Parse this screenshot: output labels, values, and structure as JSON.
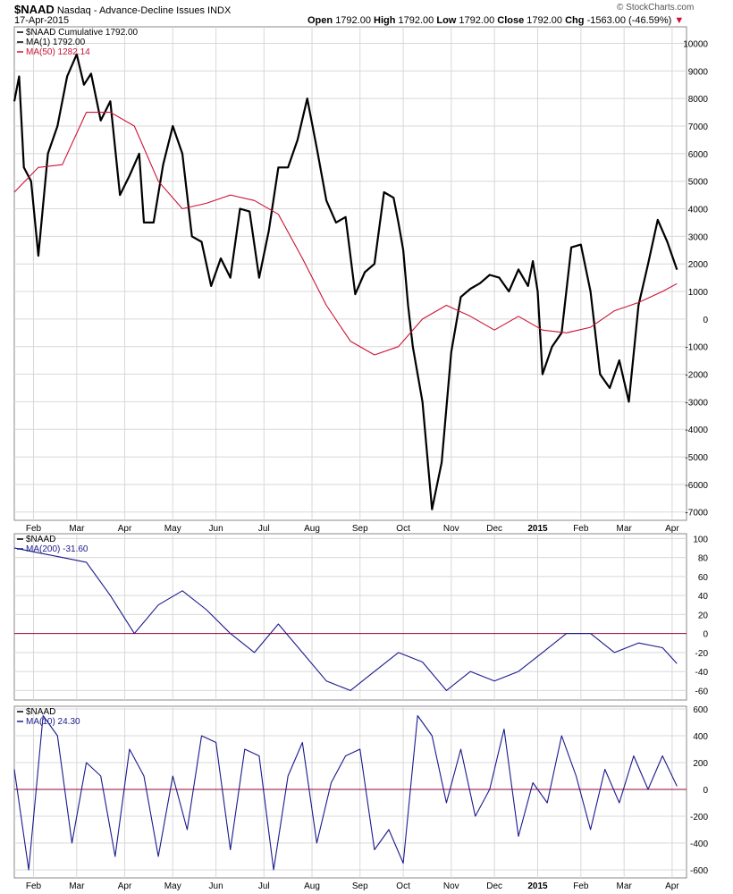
{
  "header": {
    "symbol": "$NAAD",
    "name": "Nasdaq - Advance-Decline Issues",
    "exchange": "INDX",
    "date": "17-Apr-2015",
    "open_label": "Open",
    "open": "1792.00",
    "high_label": "High",
    "high": "1792.00",
    "low_label": "Low",
    "low": "1792.00",
    "close_label": "Close",
    "close": "1792.00",
    "chg_label": "Chg",
    "chg": "-1563.00 (-46.59%)",
    "chg_icon": "down-triangle-icon",
    "watermark": "© StockCharts.com"
  },
  "colors": {
    "price": "#000000",
    "ma50": "#cc1133",
    "indicator": "#1a1a8c",
    "zero_line": "#99003a",
    "grid": "#d8d8d8"
  },
  "x_axis": {
    "labels": [
      "Feb",
      "Mar",
      "Apr",
      "May",
      "Jun",
      "Jul",
      "Aug",
      "Sep",
      "Oct",
      "Nov",
      "Dec",
      "2015",
      "Feb",
      "Mar",
      "Apr"
    ],
    "positions": [
      0.04,
      0.13,
      0.23,
      0.33,
      0.42,
      0.52,
      0.62,
      0.72,
      0.81,
      0.91,
      1.0,
      1.09,
      1.18,
      1.27,
      1.37
    ]
  },
  "chart_data": [
    {
      "type": "line",
      "panel": "main",
      "legend": [
        "$NAAD Cumulative 1792.00",
        "MA(1) 1792.00",
        "MA(50) 1282.14"
      ],
      "ylim": [
        -7300,
        10600
      ],
      "yticks": [
        10000,
        9000,
        8000,
        7000,
        6000,
        5000,
        4000,
        3000,
        2000,
        1000,
        0,
        -1000,
        -2000,
        -3000,
        -4000,
        -5000,
        -6000,
        -7000
      ],
      "series": [
        {
          "name": "$NAAD Cumulative",
          "x": [
            0.0,
            0.01,
            0.02,
            0.035,
            0.05,
            0.07,
            0.09,
            0.11,
            0.13,
            0.145,
            0.16,
            0.18,
            0.2,
            0.22,
            0.24,
            0.26,
            0.27,
            0.29,
            0.31,
            0.33,
            0.35,
            0.37,
            0.39,
            0.41,
            0.43,
            0.45,
            0.47,
            0.49,
            0.51,
            0.53,
            0.55,
            0.57,
            0.59,
            0.61,
            0.63,
            0.65,
            0.67,
            0.69,
            0.71,
            0.73,
            0.75,
            0.77,
            0.79,
            0.8,
            0.81,
            0.82,
            0.83,
            0.85,
            0.87,
            0.89,
            0.91,
            0.93,
            0.95,
            0.97,
            0.99,
            1.01,
            1.03,
            1.05,
            1.07,
            1.08,
            1.09,
            1.1,
            1.12,
            1.14,
            1.16,
            1.18,
            1.2,
            1.22,
            1.24,
            1.26,
            1.28,
            1.3,
            1.32,
            1.34,
            1.36,
            1.38
          ],
          "values": [
            7900,
            8800,
            5500,
            5000,
            2300,
            6000,
            7000,
            8800,
            9600,
            8500,
            8900,
            7200,
            7900,
            4500,
            5200,
            6000,
            3500,
            3500,
            5600,
            7000,
            6000,
            3000,
            2800,
            1200,
            2200,
            1500,
            4000,
            3900,
            1500,
            3200,
            5500,
            5500,
            6500,
            8000,
            6200,
            4300,
            3500,
            3700,
            900,
            1700,
            2000,
            4600,
            4400,
            3500,
            2500,
            500,
            -1000,
            -3000,
            -6900,
            -5200,
            -1200,
            800,
            1100,
            1300,
            1600,
            1500,
            1000,
            1800,
            1200,
            2100,
            1000,
            -2000,
            -1000,
            -500,
            2600,
            2700,
            1000,
            -2000,
            -2500,
            -1500,
            -3000,
            500,
            2000,
            3600,
            2800,
            1792
          ],
          "color": "#000000"
        },
        {
          "name": "MA(50)",
          "x": [
            0.0,
            0.05,
            0.1,
            0.15,
            0.2,
            0.25,
            0.3,
            0.35,
            0.4,
            0.45,
            0.5,
            0.55,
            0.6,
            0.65,
            0.7,
            0.75,
            0.8,
            0.85,
            0.9,
            0.95,
            1.0,
            1.05,
            1.1,
            1.15,
            1.2,
            1.25,
            1.3,
            1.35,
            1.38
          ],
          "values": [
            4600,
            5500,
            5600,
            7500,
            7500,
            7000,
            5000,
            4000,
            4200,
            4500,
            4300,
            3800,
            2200,
            500,
            -800,
            -1300,
            -1000,
            0,
            500,
            100,
            -400,
            100,
            -400,
            -500,
            -300,
            300,
            600,
            1000,
            1282
          ],
          "color": "#cc1133"
        }
      ]
    },
    {
      "type": "line",
      "panel": "lower-1",
      "legend": [
        "$NAAD",
        "MA(200) -31.60"
      ],
      "ylim": [
        -70,
        105
      ],
      "yticks": [
        100,
        80,
        60,
        40,
        20,
        0,
        -20,
        -40,
        -60
      ],
      "series": [
        {
          "name": "MA(200)",
          "x": [
            0.0,
            0.05,
            0.1,
            0.15,
            0.2,
            0.25,
            0.3,
            0.35,
            0.4,
            0.45,
            0.5,
            0.55,
            0.6,
            0.65,
            0.7,
            0.75,
            0.8,
            0.85,
            0.9,
            0.95,
            1.0,
            1.05,
            1.1,
            1.15,
            1.2,
            1.25,
            1.3,
            1.35,
            1.38
          ],
          "values": [
            90,
            85,
            80,
            75,
            40,
            0,
            30,
            45,
            25,
            0,
            -20,
            10,
            -20,
            -50,
            -60,
            -40,
            -20,
            -30,
            -60,
            -40,
            -50,
            -40,
            -20,
            0,
            0,
            -20,
            -10,
            -15,
            -31.6
          ],
          "color": "#1a1a8c"
        }
      ]
    },
    {
      "type": "line",
      "panel": "lower-2",
      "legend": [
        "$NAAD",
        "MA(10) 24.30"
      ],
      "ylim": [
        -660,
        620
      ],
      "yticks": [
        600,
        400,
        200,
        0,
        -200,
        -400,
        -600
      ],
      "series": [
        {
          "name": "MA(10)",
          "x": [
            0.0,
            0.03,
            0.06,
            0.09,
            0.12,
            0.15,
            0.18,
            0.21,
            0.24,
            0.27,
            0.3,
            0.33,
            0.36,
            0.39,
            0.42,
            0.45,
            0.48,
            0.51,
            0.54,
            0.57,
            0.6,
            0.63,
            0.66,
            0.69,
            0.72,
            0.75,
            0.78,
            0.81,
            0.84,
            0.87,
            0.9,
            0.93,
            0.96,
            0.99,
            1.02,
            1.05,
            1.08,
            1.11,
            1.14,
            1.17,
            1.2,
            1.23,
            1.26,
            1.29,
            1.32,
            1.35,
            1.38
          ],
          "values": [
            150,
            -600,
            550,
            400,
            -400,
            200,
            100,
            -500,
            300,
            100,
            -500,
            100,
            -300,
            400,
            350,
            -450,
            300,
            250,
            -600,
            100,
            350,
            -400,
            50,
            250,
            300,
            -450,
            -300,
            -550,
            550,
            400,
            -100,
            300,
            -200,
            0,
            450,
            -350,
            50,
            -100,
            400,
            100,
            -300,
            150,
            -100,
            250,
            0,
            250,
            24.3
          ],
          "color": "#1a1a8c"
        }
      ]
    }
  ]
}
